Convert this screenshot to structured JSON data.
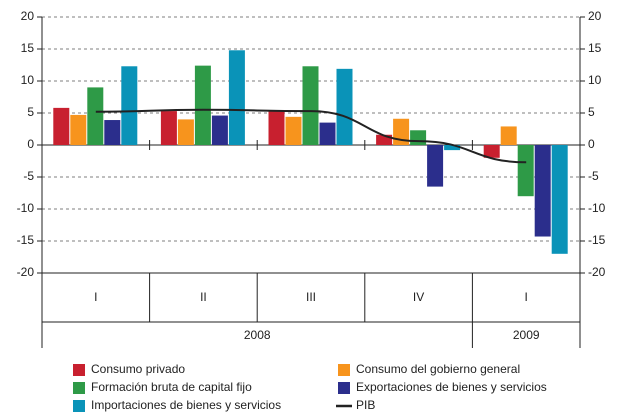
{
  "chart_data": {
    "type": "bar",
    "categories": [
      "I",
      "II",
      "III",
      "IV",
      "I"
    ],
    "groups": [
      {
        "label": "2008",
        "count": 4
      },
      {
        "label": "2009",
        "count": 1
      }
    ],
    "series": [
      {
        "name": "Consumo privado",
        "color": "#c8202f",
        "values": [
          5.8,
          5.3,
          5.3,
          1.6,
          -2.0
        ]
      },
      {
        "name": "Consumo del gobierno general",
        "color": "#f7941d",
        "values": [
          4.7,
          4.0,
          4.4,
          4.1,
          2.9
        ]
      },
      {
        "name": "Formación bruta de capital fijo",
        "color": "#2e9a47",
        "values": [
          9.0,
          12.4,
          12.3,
          2.3,
          -8.0
        ]
      },
      {
        "name": "Exportaciones de bienes y servicios",
        "color": "#2b2e8c",
        "values": [
          3.9,
          4.6,
          3.5,
          -6.5,
          -14.3
        ]
      },
      {
        "name": "Importaciones de bienes y servicios",
        "color": "#0a93b8",
        "values": [
          12.3,
          14.8,
          11.9,
          -0.8,
          -17.0
        ]
      },
      {
        "name": "PIB",
        "color": "#222222",
        "type": "line",
        "values": [
          5.2,
          5.5,
          5.3,
          0.6,
          -2.7
        ]
      }
    ],
    "ylim": [
      -20,
      20
    ],
    "yticks": [
      -20,
      -15,
      -10,
      -5,
      0,
      5,
      10,
      15,
      20
    ],
    "y2lim": [
      -20,
      20
    ],
    "y2ticks": [
      -20,
      -15,
      -10,
      -5,
      0,
      5,
      10,
      15,
      20
    ],
    "grid": true
  }
}
